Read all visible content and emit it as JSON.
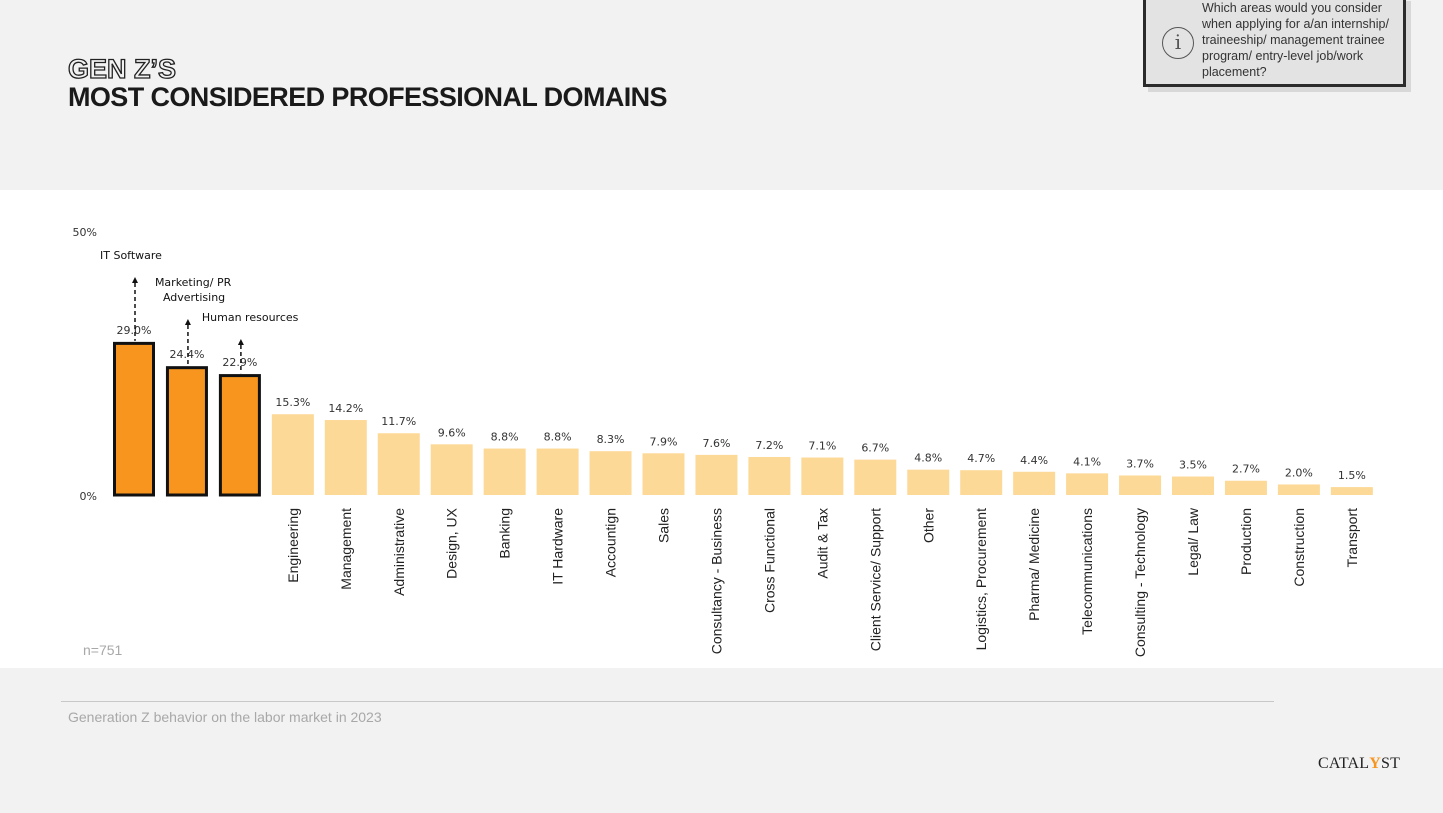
{
  "header": {
    "title_line1": "GEN Z’S",
    "title_line2": "MOST CONSIDERED PROFESSIONAL DOMAINS"
  },
  "info_box": {
    "icon": "info-icon",
    "question": "Which areas would you consider when applying for a/an internship/ traineeship/ management trainee program/ entry-level job/work placement?"
  },
  "chart_data": {
    "type": "bar",
    "ylim": [
      0,
      50
    ],
    "y_ticks": [
      "0%",
      "50%"
    ],
    "highlight_color": "#f7951e",
    "base_color": "#fdd998",
    "categories": [
      "",
      "",
      "",
      "Engineering",
      "Management",
      "Administrative",
      "Design, UX",
      "Banking",
      "IT Hardware",
      "Accountign",
      "Sales",
      "Consultancy - Business",
      "Cross Functional",
      "Audit & Tax",
      "Client Service/ Support",
      "Other",
      "Logistics, Procurement",
      "Pharma/ Medicine",
      "Telecommunications",
      "Consulting - Technology",
      "Legal/ Law",
      "Production",
      "Construction",
      "Transport"
    ],
    "values": [
      29.0,
      24.4,
      22.9,
      15.3,
      14.2,
      11.7,
      9.6,
      8.8,
      8.8,
      8.3,
      7.9,
      7.6,
      7.2,
      7.1,
      6.7,
      4.8,
      4.7,
      4.4,
      4.1,
      3.7,
      3.5,
      2.7,
      2.0,
      1.5
    ],
    "value_labels": [
      "29.0%",
      "24.4%",
      "22.9%",
      "15.3%",
      "14.2%",
      "11.7%",
      "9.6%",
      "8.8%",
      "8.8%",
      "8.3%",
      "7.9%",
      "7.6%",
      "7.2%",
      "7.1%",
      "6.7%",
      "4.8%",
      "4.7%",
      "4.4%",
      "4.1%",
      "3.7%",
      "3.5%",
      "2.7%",
      "2.0%",
      "1.5%"
    ],
    "highlighted": [
      true,
      true,
      true,
      false,
      false,
      false,
      false,
      false,
      false,
      false,
      false,
      false,
      false,
      false,
      false,
      false,
      false,
      false,
      false,
      false,
      false,
      false,
      false,
      false
    ],
    "annotations": [
      {
        "bar": 0,
        "lines": [
          "IT Software"
        ]
      },
      {
        "bar": 1,
        "lines": [
          "Marketing/ PR",
          "Advertising"
        ]
      },
      {
        "bar": 2,
        "lines": [
          "Human resources"
        ]
      }
    ]
  },
  "sample_size": "n=751",
  "footer": {
    "source": "Generation Z behavior on the labor market in 2023",
    "logo_pre": "CATAL",
    "logo_y": "Y",
    "logo_post": "ST"
  }
}
